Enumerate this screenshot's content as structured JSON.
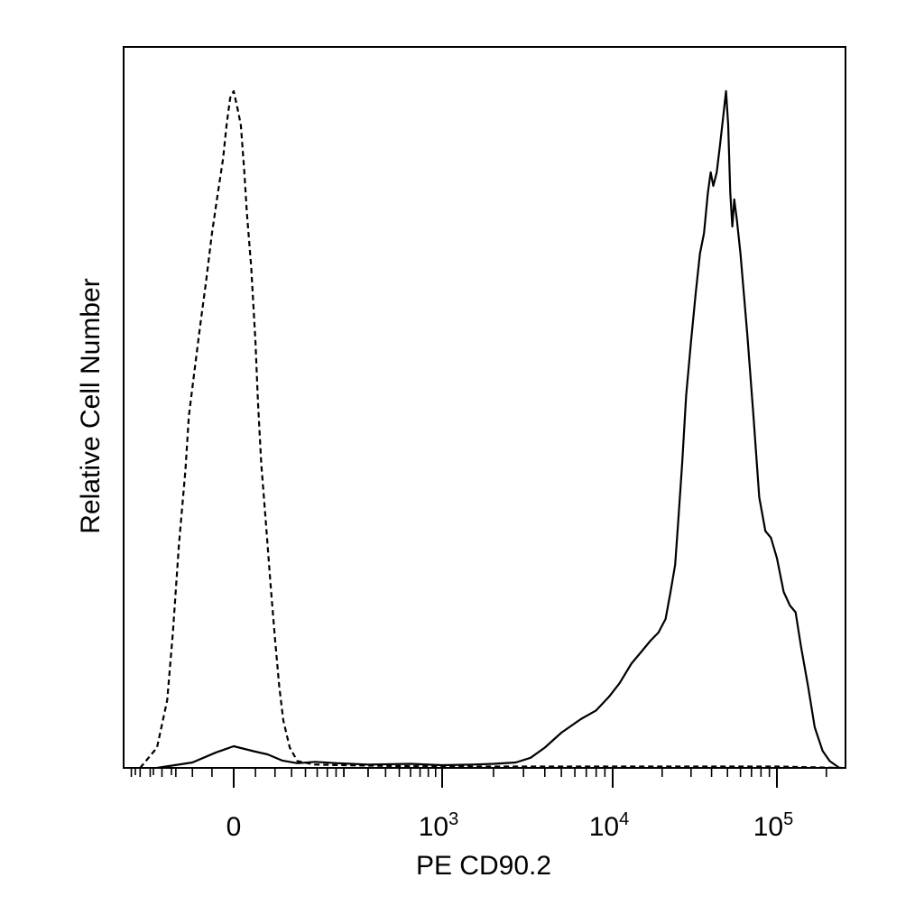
{
  "chart_data": {
    "type": "line",
    "title": "",
    "xlabel": "PE CD90.2",
    "ylabel": "Relative Cell Number",
    "x_scale": "biexponential",
    "x_ticks": [
      {
        "label": "0",
        "value": 0
      },
      {
        "label": "10",
        "exp": "3",
        "value": 1000
      },
      {
        "label": "10",
        "exp": "4",
        "value": 10000
      },
      {
        "label": "10",
        "exp": "5",
        "value": 100000
      }
    ],
    "grid": false,
    "legend": "none",
    "series": [
      {
        "style": "dashed",
        "points": [
          [
            -150,
            0
          ],
          [
            -110,
            3
          ],
          [
            -90,
            10
          ],
          [
            -80,
            20
          ],
          [
            -70,
            33
          ],
          [
            -60,
            44
          ],
          [
            -55,
            52
          ],
          [
            -48,
            58
          ],
          [
            -40,
            65
          ],
          [
            -32,
            72
          ],
          [
            -25,
            79
          ],
          [
            -18,
            85
          ],
          [
            -12,
            90
          ],
          [
            -8,
            95
          ],
          [
            -4,
            99
          ],
          [
            0,
            100
          ],
          [
            5,
            97
          ],
          [
            8,
            95
          ],
          [
            12,
            88
          ],
          [
            15,
            82
          ],
          [
            20,
            74
          ],
          [
            25,
            63
          ],
          [
            28,
            54
          ],
          [
            32,
            45
          ],
          [
            38,
            36
          ],
          [
            44,
            27
          ],
          [
            50,
            19
          ],
          [
            56,
            12
          ],
          [
            62,
            7
          ],
          [
            72,
            3
          ],
          [
            85,
            1
          ],
          [
            120,
            0.5
          ],
          [
            200,
            0.4
          ],
          [
            400,
            0.3
          ],
          [
            1000,
            0.2
          ],
          [
            10000,
            0.2
          ],
          [
            100000,
            0.2
          ],
          [
            250000,
            0
          ]
        ]
      },
      {
        "style": "solid",
        "points": [
          [
            -110,
            0
          ],
          [
            -50,
            0.8
          ],
          [
            -20,
            2.3
          ],
          [
            0,
            3.2
          ],
          [
            25,
            2.4
          ],
          [
            40,
            2.0
          ],
          [
            60,
            1.1
          ],
          [
            85,
            0.7
          ],
          [
            120,
            0.9
          ],
          [
            180,
            0.7
          ],
          [
            300,
            0.5
          ],
          [
            600,
            0.6
          ],
          [
            1000,
            0.4
          ],
          [
            1500,
            0.5
          ],
          [
            2000,
            0.6
          ],
          [
            2700,
            0.8
          ],
          [
            3300,
            1.5
          ],
          [
            4000,
            3.0
          ],
          [
            5000,
            5.2
          ],
          [
            6500,
            7.2
          ],
          [
            8000,
            8.5
          ],
          [
            9500,
            10.5
          ],
          [
            11000,
            12.5
          ],
          [
            13000,
            15.4
          ],
          [
            15000,
            17.2
          ],
          [
            17000,
            18.8
          ],
          [
            19000,
            20.0
          ],
          [
            21000,
            22.0
          ],
          [
            22500,
            26.0
          ],
          [
            24000,
            30.0
          ],
          [
            25000,
            36.0
          ],
          [
            26500,
            45.0
          ],
          [
            28000,
            55.0
          ],
          [
            30000,
            63.0
          ],
          [
            32000,
            70.0
          ],
          [
            34000,
            76.0
          ],
          [
            36000,
            79.0
          ],
          [
            38000,
            85.0
          ],
          [
            39500,
            88.0
          ],
          [
            41000,
            86.0
          ],
          [
            43000,
            88.0
          ],
          [
            45000,
            92.0
          ],
          [
            47000,
            96.0
          ],
          [
            49000,
            100.0
          ],
          [
            50500,
            95.0
          ],
          [
            52000,
            85.0
          ],
          [
            53500,
            80.0
          ],
          [
            55000,
            84.0
          ],
          [
            57000,
            81.0
          ],
          [
            60000,
            76.0
          ],
          [
            66000,
            64.0
          ],
          [
            72000,
            52.0
          ],
          [
            78000,
            40.0
          ],
          [
            85000,
            35.0
          ],
          [
            92000,
            34.0
          ],
          [
            100000,
            31.0
          ],
          [
            110000,
            26.0
          ],
          [
            120000,
            24.0
          ],
          [
            130000,
            23.0
          ],
          [
            140000,
            18.0
          ],
          [
            155000,
            12.0
          ],
          [
            170000,
            6.0
          ],
          [
            190000,
            2.5
          ],
          [
            210000,
            1.0
          ],
          [
            240000,
            0
          ]
        ]
      }
    ]
  }
}
